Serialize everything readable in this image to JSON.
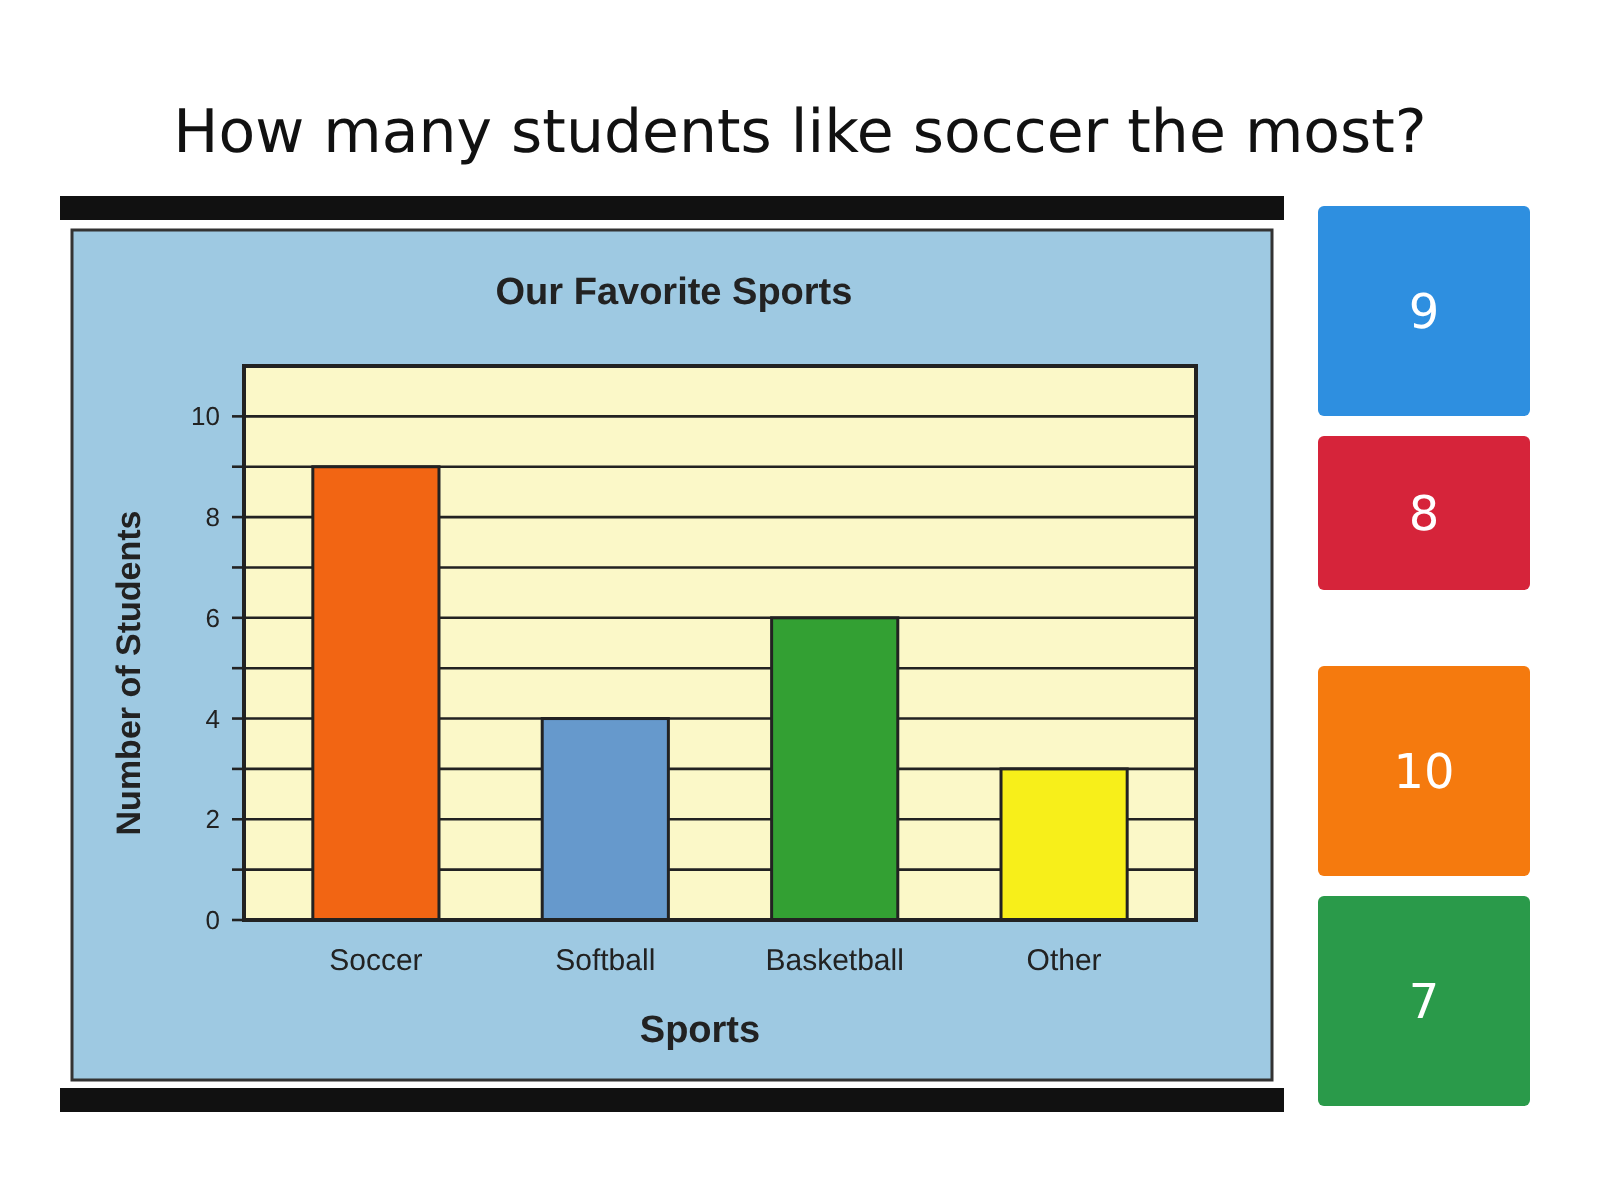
{
  "chart_data": {
    "type": "bar",
    "title": "Our Favorite Sports",
    "xlabel": "Sports",
    "ylabel": "Number of Students",
    "categories": [
      "Soccer",
      "Softball",
      "Basketball",
      "Other"
    ],
    "values": [
      9,
      4,
      6,
      3
    ],
    "colors": [
      "#f26513",
      "#6699cc",
      "#33a033",
      "#f7ef1a"
    ],
    "ylim": [
      0,
      11
    ],
    "yticks": [
      0,
      {
        "value": 1,
        "label": null
      },
      2,
      {
        "value": 3,
        "label": null
      },
      4,
      {
        "value": 5,
        "label": null
      },
      6,
      {
        "value": 7,
        "label": null
      },
      8,
      {
        "value": 9,
        "label": null
      },
      10
    ],
    "grid": "y",
    "annotations": [
      "How many students like soccer the most?",
      "9",
      "8",
      "10",
      "7"
    ]
  }
}
